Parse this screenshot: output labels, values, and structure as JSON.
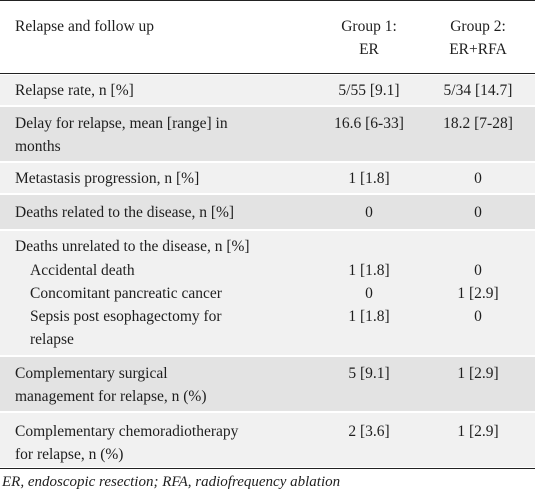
{
  "header": {
    "col1": "Relapse and follow up",
    "col2_line1": "Group 1:",
    "col2_line2": "ER",
    "col3_line1": "Group 2:",
    "col3_line2": "ER+RFA"
  },
  "rows": [
    {
      "label": "Relapse rate, n [%]",
      "g1": "5/55 [9.1]",
      "g2": "5/34 [14.7]"
    },
    {
      "label_line1": "Delay for relapse, mean [range] in",
      "label_line2": "months",
      "g1": "16.6 [6-33]",
      "g2": "18.2 [7-28]"
    },
    {
      "label": "Metastasis progression, n [%]",
      "g1": "1 [1.8]",
      "g2": "0"
    },
    {
      "label": "Deaths related to the disease, n [%]",
      "g1": "0",
      "g2": "0"
    },
    {
      "label": "Deaths unrelated to the disease, n [%]",
      "sub": [
        {
          "label": "Accidental death",
          "g1": "1 [1.8]",
          "g2": "0"
        },
        {
          "label": "Concomitant pancreatic cancer",
          "g1": "0",
          "g2": "1 [2.9]"
        },
        {
          "label_line1": "Sepsis post esophagectomy for",
          "label_line2": "relapse",
          "g1": "1 [1.8]",
          "g2": "0"
        }
      ]
    },
    {
      "label_line1": "Complementary surgical",
      "label_line2": "management for relapse, n (%)",
      "g1": "5 [9.1]",
      "g2": "1 [2.9]"
    },
    {
      "label_line1": "Complementary chemoradiotherapy",
      "label_line2": "for relapse, n (%)",
      "g1": "2 [3.6]",
      "g2": "1 [2.9]"
    }
  ],
  "footnote": "ER, endoscopic resection; RFA, radiofrequency ablation"
}
